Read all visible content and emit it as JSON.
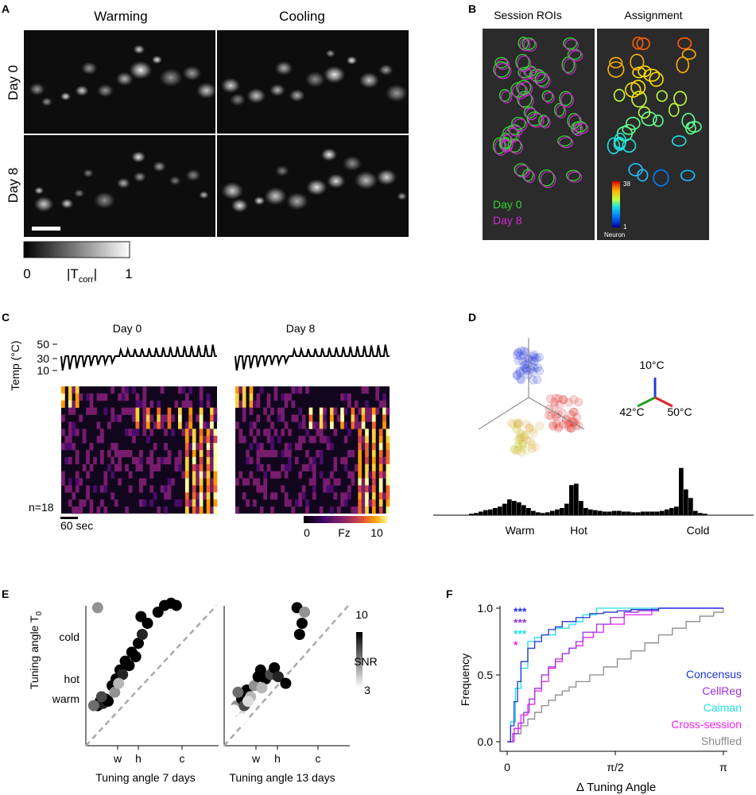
{
  "panels": {
    "A": {
      "letter": "A",
      "col_labels": [
        "Warming",
        "Cooling"
      ],
      "row_labels": [
        "Day 0",
        "Day 8"
      ],
      "colorbar": {
        "min_label": "0",
        "max_label": "1",
        "label_main": "|T",
        "label_sub": "corr",
        "label_end": "|"
      }
    },
    "B": {
      "letter": "B",
      "titles": [
        "Session ROIs",
        "Assignment"
      ],
      "legend": [
        {
          "label": "Day 0",
          "color": "#2fd12f"
        },
        {
          "label": "Day 8",
          "color": "#d02ad0"
        }
      ],
      "neuron_bar": {
        "top": "38",
        "bottom": "1",
        "label": "Neuron"
      }
    },
    "C": {
      "letter": "C",
      "titles": [
        "Day 0",
        "Day 8"
      ],
      "y_label": "Temp (°C)",
      "y_ticks": [
        "50",
        "30",
        "10"
      ],
      "n_label": "n=18",
      "scalebar": "60 sec",
      "colorbar": {
        "min_label": "0",
        "mid_label": "Fz",
        "max_label": "10"
      }
    },
    "D": {
      "letter": "D",
      "axis_labels": {
        "top": "10°C",
        "left": "42°C",
        "right": "50°C"
      },
      "axis_colors": {
        "top": "#1f3fd6",
        "left": "#22a022",
        "right": "#e02020"
      },
      "hist_labels": [
        "Warm",
        "Hot",
        "Cold"
      ],
      "hist_bars": [
        0.02,
        0.03,
        0.05,
        0.07,
        0.08,
        0.1,
        0.12,
        0.16,
        0.22,
        0.2,
        0.18,
        0.14,
        0.1,
        0.06,
        0.04,
        0.03,
        0.04,
        0.06,
        0.08,
        0.1,
        0.16,
        0.42,
        0.44,
        0.2,
        0.1,
        0.08,
        0.07,
        0.06,
        0.05,
        0.05,
        0.06,
        0.06,
        0.05,
        0.05,
        0.04,
        0.04,
        0.05,
        0.05,
        0.05,
        0.05,
        0.06,
        0.08,
        0.1,
        0.12,
        0.66,
        0.36,
        0.24,
        0.06,
        0.03,
        0.02
      ]
    },
    "E": {
      "letter": "E",
      "y_label": "Tuning angle T",
      "y_label_sub": "0",
      "y_ticks": [
        "cold",
        "hot",
        "warm"
      ],
      "x_ticks": [
        "w",
        "h",
        "c"
      ],
      "x_labels": [
        "Tuning angle 7 days",
        "Tuning angle 13 days"
      ],
      "colorbar": {
        "max_label": "10",
        "mid_label": "SNR",
        "min_label": "3"
      }
    },
    "F": {
      "letter": "F",
      "y_label": "Frequency",
      "x_label": "Δ Tuning Angle",
      "stars": [
        {
          "text": "***",
          "color": "#2233dd"
        },
        {
          "text": "***",
          "color": "#9b30e0"
        },
        {
          "text": "***",
          "color": "#20e0e0"
        },
        {
          "text": "*",
          "color": "#ee22ee"
        }
      ]
    }
  },
  "chart_data": [
    {
      "type": "scatter",
      "panel": "E-left",
      "xlabel": "Tuning angle 7 days",
      "ylabel": "Tuning angle T0",
      "x_ticks": [
        "w",
        "h",
        "c"
      ],
      "y_ticks": [
        "warm",
        "hot",
        "cold"
      ],
      "points": [
        {
          "x": 0.09,
          "y": 0.18,
          "snr": 10
        },
        {
          "x": 0.11,
          "y": 0.2,
          "snr": 10
        },
        {
          "x": 0.13,
          "y": 0.19,
          "snr": 9
        },
        {
          "x": 0.15,
          "y": 0.21,
          "snr": 10
        },
        {
          "x": 0.17,
          "y": 0.2,
          "snr": 10
        },
        {
          "x": 0.12,
          "y": 0.22,
          "snr": 8
        },
        {
          "x": 0.06,
          "y": 0.18,
          "snr": 7
        },
        {
          "x": 0.2,
          "y": 0.27,
          "snr": 10
        },
        {
          "x": 0.23,
          "y": 0.3,
          "snr": 10
        },
        {
          "x": 0.26,
          "y": 0.34,
          "snr": 10
        },
        {
          "x": 0.28,
          "y": 0.32,
          "snr": 9
        },
        {
          "x": 0.3,
          "y": 0.38,
          "snr": 10
        },
        {
          "x": 0.33,
          "y": 0.36,
          "snr": 10
        },
        {
          "x": 0.22,
          "y": 0.24,
          "snr": 6
        },
        {
          "x": 0.35,
          "y": 0.42,
          "snr": 10
        },
        {
          "x": 0.38,
          "y": 0.4,
          "snr": 10
        },
        {
          "x": 0.4,
          "y": 0.46,
          "snr": 10
        },
        {
          "x": 0.43,
          "y": 0.5,
          "snr": 9
        },
        {
          "x": 0.47,
          "y": 0.55,
          "snr": 10
        },
        {
          "x": 0.55,
          "y": 0.6,
          "snr": 10
        },
        {
          "x": 0.6,
          "y": 0.63,
          "snr": 10
        },
        {
          "x": 0.65,
          "y": 0.64,
          "snr": 10
        },
        {
          "x": 0.69,
          "y": 0.63,
          "snr": 10
        },
        {
          "x": 0.42,
          "y": 0.58,
          "snr": 10
        },
        {
          "x": 0.25,
          "y": 0.28,
          "snr": 5
        },
        {
          "x": 0.09,
          "y": 0.62,
          "snr": 6
        }
      ]
    },
    {
      "type": "scatter",
      "panel": "E-right",
      "xlabel": "Tuning angle 13 days",
      "x_ticks": [
        "w",
        "h",
        "c"
      ],
      "points": [
        {
          "x": 0.1,
          "y": 0.18,
          "snr": 6
        },
        {
          "x": 0.12,
          "y": 0.15,
          "snr": 4
        },
        {
          "x": 0.14,
          "y": 0.21,
          "snr": 10
        },
        {
          "x": 0.16,
          "y": 0.18,
          "snr": 8
        },
        {
          "x": 0.18,
          "y": 0.25,
          "snr": 10
        },
        {
          "x": 0.11,
          "y": 0.24,
          "snr": 7
        },
        {
          "x": 0.14,
          "y": 0.12,
          "snr": 3
        },
        {
          "x": 0.21,
          "y": 0.22,
          "snr": 5
        },
        {
          "x": 0.24,
          "y": 0.27,
          "snr": 6
        },
        {
          "x": 0.27,
          "y": 0.31,
          "snr": 10
        },
        {
          "x": 0.29,
          "y": 0.34,
          "snr": 10
        },
        {
          "x": 0.33,
          "y": 0.3,
          "snr": 10
        },
        {
          "x": 0.37,
          "y": 0.32,
          "snr": 8
        },
        {
          "x": 0.4,
          "y": 0.35,
          "snr": 10
        },
        {
          "x": 0.43,
          "y": 0.31,
          "snr": 9
        },
        {
          "x": 0.49,
          "y": 0.28,
          "snr": 10
        },
        {
          "x": 0.58,
          "y": 0.62,
          "snr": 10
        },
        {
          "x": 0.62,
          "y": 0.55,
          "snr": 10
        },
        {
          "x": 0.64,
          "y": 0.6,
          "snr": 6
        },
        {
          "x": 0.6,
          "y": 0.5,
          "snr": 10
        },
        {
          "x": 0.19,
          "y": 0.2,
          "snr": 4
        },
        {
          "x": 0.08,
          "y": 0.16,
          "snr": 3
        },
        {
          "x": 0.3,
          "y": 0.26,
          "snr": 5
        }
      ]
    },
    {
      "type": "line",
      "panel": "F",
      "xlabel": "Δ Tuning Angle",
      "ylabel": "Frequency",
      "x_ticks": [
        "0",
        "π/2",
        "π"
      ],
      "y_ticks": [
        "0.0",
        "0.5",
        "1.0"
      ],
      "xlim": [
        0,
        3.1416
      ],
      "ylim": [
        0,
        1
      ],
      "series": [
        {
          "name": "Concensus",
          "color": "#2233dd",
          "x": [
            0,
            0.05,
            0.1,
            0.15,
            0.2,
            0.3,
            0.4,
            0.5,
            0.6,
            0.7,
            0.8,
            1.0,
            1.2,
            1.4,
            1.6,
            1.8,
            2.0,
            2.2,
            3.14
          ],
          "y": [
            0,
            0.12,
            0.3,
            0.45,
            0.6,
            0.7,
            0.75,
            0.8,
            0.84,
            0.86,
            0.9,
            0.93,
            0.96,
            0.97,
            0.98,
            0.99,
            0.99,
            1.0,
            1.0
          ]
        },
        {
          "name": "CellReg",
          "color": "#9b30e0",
          "x": [
            0,
            0.08,
            0.16,
            0.24,
            0.32,
            0.4,
            0.5,
            0.6,
            0.7,
            0.8,
            0.9,
            1.0,
            1.1,
            1.3,
            1.5,
            1.7,
            1.9,
            2.2,
            3.14
          ],
          "y": [
            0,
            0.06,
            0.14,
            0.22,
            0.32,
            0.4,
            0.5,
            0.56,
            0.62,
            0.66,
            0.7,
            0.75,
            0.82,
            0.88,
            0.93,
            0.97,
            0.98,
            1.0,
            1.0
          ]
        },
        {
          "name": "Caiman",
          "color": "#20e0e0",
          "x": [
            0,
            0.05,
            0.12,
            0.2,
            0.3,
            0.4,
            0.5,
            0.7,
            0.9,
            1.0,
            1.1,
            1.3,
            1.5,
            1.8,
            2.1,
            2.4,
            3.14
          ],
          "y": [
            0,
            0.15,
            0.4,
            0.55,
            0.75,
            0.78,
            0.8,
            0.85,
            0.88,
            0.9,
            0.95,
            1.0,
            1.0,
            1.0,
            1.0,
            1.0,
            1.0
          ]
        },
        {
          "name": "Cross-session",
          "color": "#ee22ee",
          "x": [
            0,
            0.1,
            0.2,
            0.3,
            0.4,
            0.5,
            0.6,
            0.7,
            0.8,
            0.9,
            1.0,
            1.1,
            1.25,
            1.4,
            1.55,
            1.7,
            1.9,
            2.1,
            3.14
          ],
          "y": [
            0,
            0.1,
            0.2,
            0.28,
            0.38,
            0.45,
            0.55,
            0.6,
            0.66,
            0.7,
            0.72,
            0.78,
            0.82,
            0.88,
            0.88,
            0.95,
            0.95,
            1.0,
            1.0
          ]
        },
        {
          "name": "Shuffled",
          "color": "#8a8a8a",
          "x": [
            0,
            0.1,
            0.2,
            0.3,
            0.4,
            0.5,
            0.6,
            0.7,
            0.8,
            0.9,
            1.0,
            1.2,
            1.4,
            1.6,
            1.8,
            2.0,
            2.2,
            2.4,
            2.6,
            2.8,
            3.0,
            3.14
          ],
          "y": [
            0,
            0.06,
            0.12,
            0.17,
            0.22,
            0.27,
            0.31,
            0.35,
            0.38,
            0.41,
            0.45,
            0.5,
            0.56,
            0.62,
            0.68,
            0.74,
            0.8,
            0.85,
            0.9,
            0.94,
            0.97,
            1.0
          ]
        }
      ]
    }
  ]
}
